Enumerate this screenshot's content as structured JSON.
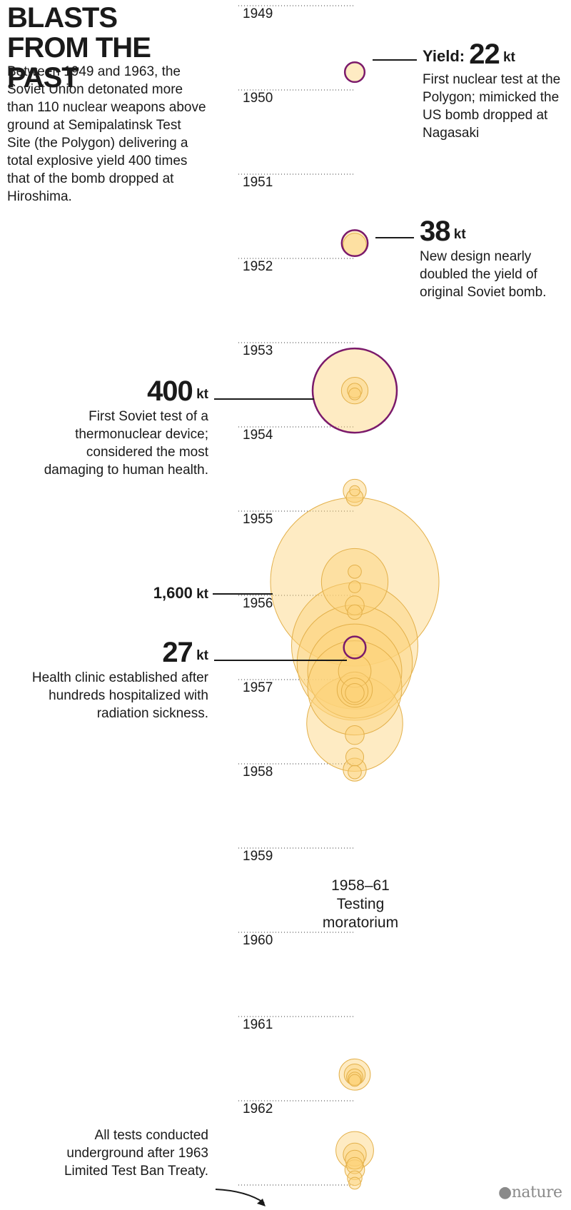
{
  "title": "BLASTS FROM THE PAST",
  "intro": "Between 1949 and 1963, the Soviet Union detonated more than 110 nuclear weapons above ground at Semipalatinsk Test Site (the Polygon) delivering a total explosive yield 400 times that of the bomb dropped at Hiroshima.",
  "credit": "nature",
  "colors": {
    "bubble_fill": "#fcd27a",
    "bubble_stroke": "#e3b04a",
    "highlight_stroke": "#7b1a6b",
    "text": "#1a1a1a",
    "dotted_line": "#9a9a9a"
  },
  "chart_data": {
    "type": "bubble-timeline",
    "title": "BLASTS FROM THE PAST",
    "year_ticks": [
      "1949",
      "1950",
      "1951",
      "1952",
      "1953",
      "1954",
      "1955",
      "1956",
      "1957",
      "1958",
      "1959",
      "1960",
      "1961",
      "1962"
    ],
    "size_encoding": "explosive yield (kt)",
    "tests": [
      {
        "t": 1949.67,
        "kt": 22,
        "highlight": true
      },
      {
        "t": 1951.7,
        "kt": 38,
        "highlight": true
      },
      {
        "t": 1951.72,
        "kt": 30
      },
      {
        "t": 1953.45,
        "kt": 400,
        "highlight": true
      },
      {
        "t": 1953.45,
        "kt": 40
      },
      {
        "t": 1953.45,
        "kt": 12
      },
      {
        "t": 1953.49,
        "kt": 8
      },
      {
        "t": 1954.64,
        "kt": 30
      },
      {
        "t": 1954.64,
        "kt": 6
      },
      {
        "t": 1954.72,
        "kt": 16
      },
      {
        "t": 1955.6,
        "kt": 10
      },
      {
        "t": 1955.72,
        "kt": 250
      },
      {
        "t": 1955.72,
        "kt": 1600,
        "highlight": true
      },
      {
        "t": 1955.78,
        "kt": 8
      },
      {
        "t": 1956.0,
        "kt": 20
      },
      {
        "t": 1956.08,
        "kt": 12
      },
      {
        "t": 1956.48,
        "kt": 900
      },
      {
        "t": 1956.5,
        "kt": 27,
        "highlight": true
      },
      {
        "t": 1956.68,
        "kt": 750
      },
      {
        "t": 1956.78,
        "kt": 500
      },
      {
        "t": 1956.78,
        "kt": 60
      },
      {
        "t": 1956.98,
        "kt": 500
      },
      {
        "t": 1957.0,
        "kt": 70
      },
      {
        "t": 1957.02,
        "kt": 40
      },
      {
        "t": 1957.04,
        "kt": 20
      },
      {
        "t": 1957.4,
        "kt": 520
      },
      {
        "t": 1957.54,
        "kt": 20
      },
      {
        "t": 1957.8,
        "kt": 18
      },
      {
        "t": 1957.95,
        "kt": 30
      },
      {
        "t": 1957.98,
        "kt": 10
      },
      {
        "t": 1961.57,
        "kt": 55
      },
      {
        "t": 1961.57,
        "kt": 25
      },
      {
        "t": 1961.6,
        "kt": 15
      },
      {
        "t": 1961.62,
        "kt": 10
      },
      {
        "t": 1961.64,
        "kt": 8
      },
      {
        "t": 1962.47,
        "kt": 80
      },
      {
        "t": 1962.52,
        "kt": 30
      },
      {
        "t": 1962.58,
        "kt": 20
      },
      {
        "t": 1962.65,
        "kt": 15
      },
      {
        "t": 1962.7,
        "kt": 22
      },
      {
        "t": 1962.8,
        "kt": 12
      },
      {
        "t": 1962.86,
        "kt": 8
      }
    ],
    "annotations": [
      {
        "prefix": "Yield: ",
        "value": "22",
        "unit": "kt",
        "text": "First nuclear test at the Polygon; mimicked the US bomb dropped at Nagasaki"
      },
      {
        "value": "38",
        "unit": "kt",
        "text": "New design nearly doubled the yield of original Soviet bomb."
      },
      {
        "value": "400",
        "unit": "kt",
        "text": "First Soviet test of a thermonuclear device; considered the most damaging to human health."
      },
      {
        "value": "1,600",
        "unit": "kt",
        "text": ""
      },
      {
        "value": "27",
        "unit": "kt",
        "text": "Health clinic established after hundreds hospitalized with radiation sickness."
      },
      {
        "value": "",
        "unit": "",
        "text": "All tests conducted underground after 1963 Limited Test Ban Treaty."
      }
    ],
    "moratorium": "1958–61 Testing moratorium"
  }
}
